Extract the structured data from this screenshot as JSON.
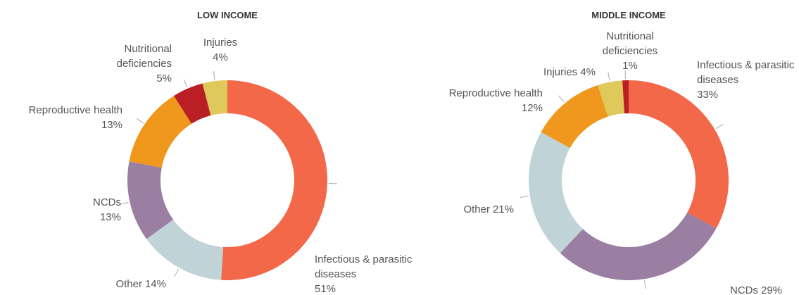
{
  "chart_data": [
    {
      "type": "pie",
      "title": "LOW INCOME",
      "categories": [
        "Infectious & parasitic diseases",
        "Other",
        "NCDs",
        "Reproductive health",
        "Nutritional deficiencies",
        "Injuries"
      ],
      "values": [
        51,
        14,
        13,
        13,
        5,
        4
      ],
      "value_labels": [
        "51%",
        "14%",
        "13%",
        "13%",
        "5%",
        "4%"
      ],
      "colors": [
        "#f26849",
        "#c0d3d6",
        "#9a7fa3",
        "#f0981e",
        "#b91f24",
        "#dfc95a"
      ]
    },
    {
      "type": "pie",
      "title": "MIDDLE INCOME",
      "categories": [
        "Infectious & parasitic diseases",
        "NCDs",
        "Other",
        "Reproductive health",
        "Injuries",
        "Nutritional deficiencies"
      ],
      "values": [
        33,
        29,
        21,
        12,
        4,
        1
      ],
      "value_labels": [
        "33%",
        "29%",
        "21%",
        "12%",
        "4%",
        "1%"
      ],
      "colors": [
        "#f26849",
        "#9a7fa3",
        "#c0d3d6",
        "#f0981e",
        "#dfc95a",
        "#b91f24"
      ]
    }
  ]
}
